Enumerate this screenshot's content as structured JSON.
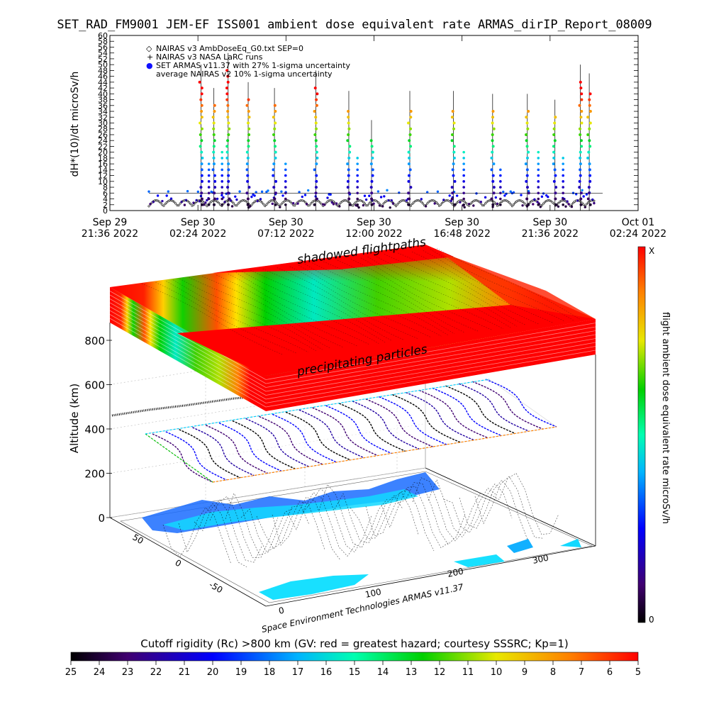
{
  "title": "SET_RAD_FM9001   JEM-EF ISS001 ambient dose equivalent rate ARMAS_dirIP_Report_08009",
  "chart_data": [
    {
      "type": "scatter",
      "ylabel": "dH*(10)/dt microSv/h",
      "ylim": [
        0,
        60
      ],
      "y_ticks": [
        "0",
        "2",
        "4",
        "6",
        "8",
        "10",
        "12",
        "14",
        "16",
        "18",
        "20",
        "22",
        "24",
        "26",
        "28",
        "30",
        "32",
        "34",
        "36",
        "38",
        "40",
        "42",
        "44",
        "46",
        "48",
        "50",
        "52",
        "54",
        "56",
        "58",
        "60"
      ],
      "x_ticks": [
        {
          "line1": "Sep 29",
          "line2": "21:36  2022"
        },
        {
          "line1": "Sep 30",
          "line2": "02:24  2022"
        },
        {
          "line1": "Sep 30",
          "line2": "07:12  2022"
        },
        {
          "line1": "Sep 30",
          "line2": "12:00  2022"
        },
        {
          "line1": "Sep 30",
          "line2": "16:48  2022"
        },
        {
          "line1": "Sep 30",
          "line2": "21:36  2022"
        },
        {
          "line1": "Oct 01",
          "line2": "02:24  2022"
        }
      ],
      "legend": [
        {
          "marker": "◇",
          "text": "NAIRAS v3 AmbDoseEq_G0.txt SEP=0"
        },
        {
          "marker": "+",
          "text": "NAIRAS v3 NASA LaRC runs"
        },
        {
          "marker": "●",
          "text": "SET ARMAS v11.37 with 27% 1-sigma uncertainty"
        },
        {
          "marker": "",
          "text": "average NAIRAS v2 10% 1-sigma uncertainty"
        }
      ],
      "baseline_range": [
        0,
        6
      ],
      "spikes": [
        {
          "t": 0.117,
          "v": 44
        },
        {
          "t": 0.146,
          "v": 36
        },
        {
          "t": 0.178,
          "v": 48
        },
        {
          "t": 0.223,
          "v": 38
        },
        {
          "t": 0.282,
          "v": 36
        },
        {
          "t": 0.375,
          "v": 42
        },
        {
          "t": 0.449,
          "v": 35
        },
        {
          "t": 0.5,
          "v": 25
        },
        {
          "t": 0.586,
          "v": 35
        },
        {
          "t": 0.684,
          "v": 35
        },
        {
          "t": 0.772,
          "v": 34
        },
        {
          "t": 0.85,
          "v": 34
        },
        {
          "t": 0.912,
          "v": 32
        },
        {
          "t": 0.969,
          "v": 44
        },
        {
          "t": 0.989,
          "v": 41
        }
      ]
    },
    {
      "type": "3d-scatter",
      "ylabel": "Altitude (km)",
      "z_ticks": [
        "0",
        "200",
        "400",
        "600",
        "800"
      ],
      "lat_ticks": [
        "50",
        "0",
        "-50"
      ],
      "lon_ticks": [
        "0",
        "100",
        "200",
        "300"
      ],
      "slab_labels": [
        "shadowed flightpaths",
        "precipitating particles"
      ],
      "credit": "Space Environment Technologies ARMAS v11.37"
    }
  ],
  "colorbar_right": {
    "label": "flight ambient dose equivalent rate microSv/h",
    "top_label": "X",
    "bottom_label": "0"
  },
  "colorbar_bottom": {
    "title": "Cutoff rigidity (Rc) >800 km (GV: red = greatest hazard; courtesy SSSRC; Kp=1)",
    "ticks": [
      "25",
      "24",
      "23",
      "22",
      "21",
      "20",
      "19",
      "18",
      "17",
      "16",
      "15",
      "14",
      "13",
      "12",
      "11",
      "10",
      "9",
      "8",
      "7",
      "6",
      "5"
    ]
  }
}
